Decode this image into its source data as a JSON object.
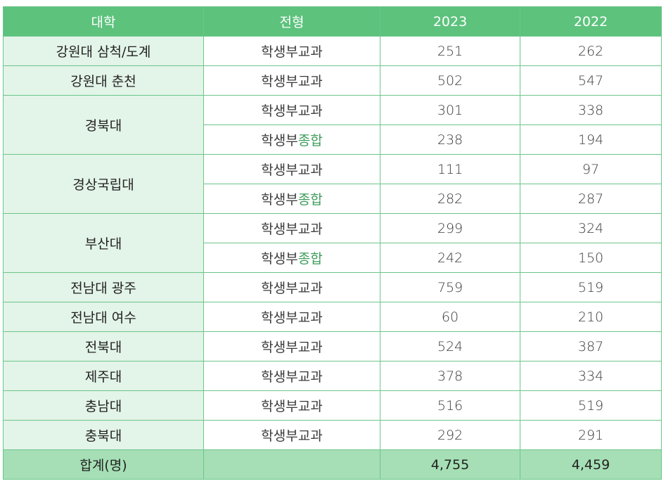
{
  "header": {
    "col_univ": "대학",
    "col_type": "전형",
    "col_2023": "2023",
    "col_2022": "2022"
  },
  "rows": [
    {
      "univ": "강원대 삼척/도계",
      "entries": [
        {
          "type_prefix": "학생부",
          "type_suffix": "교과",
          "v2023": "251",
          "v2022": "262"
        }
      ]
    },
    {
      "univ": "강원대 춘천",
      "entries": [
        {
          "type_prefix": "학생부",
          "type_suffix": "교과",
          "v2023": "502",
          "v2022": "547"
        }
      ]
    },
    {
      "univ": "경북대",
      "entries": [
        {
          "type_prefix": "학생부",
          "type_suffix": "교과",
          "v2023": "301",
          "v2022": "338"
        },
        {
          "type_prefix": "학생부",
          "type_suffix": "종합",
          "v2023": "238",
          "v2022": "194"
        }
      ]
    },
    {
      "univ": "경상국립대",
      "entries": [
        {
          "type_prefix": "학생부",
          "type_suffix": "교과",
          "v2023": "111",
          "v2022": "97"
        },
        {
          "type_prefix": "학생부",
          "type_suffix": "종합",
          "v2023": "282",
          "v2022": "287"
        }
      ]
    },
    {
      "univ": "부산대",
      "entries": [
        {
          "type_prefix": "학생부",
          "type_suffix": "교과",
          "v2023": "299",
          "v2022": "324"
        },
        {
          "type_prefix": "학생부",
          "type_suffix": "종합",
          "v2023": "242",
          "v2022": "150"
        }
      ]
    },
    {
      "univ": "전남대 광주",
      "entries": [
        {
          "type_prefix": "학생부",
          "type_suffix": "교과",
          "v2023": "759",
          "v2022": "519"
        }
      ]
    },
    {
      "univ": "전남대 여수",
      "entries": [
        {
          "type_prefix": "학생부",
          "type_suffix": "교과",
          "v2023": "60",
          "v2022": "210"
        }
      ]
    },
    {
      "univ": "전북대",
      "entries": [
        {
          "type_prefix": "학생부",
          "type_suffix": "교과",
          "v2023": "524",
          "v2022": "387"
        }
      ]
    },
    {
      "univ": "제주대",
      "entries": [
        {
          "type_prefix": "학생부",
          "type_suffix": "교과",
          "v2023": "378",
          "v2022": "334"
        }
      ]
    },
    {
      "univ": "충남대",
      "entries": [
        {
          "type_prefix": "학생부",
          "type_suffix": "교과",
          "v2023": "516",
          "v2022": "519"
        }
      ]
    },
    {
      "univ": "충북대",
      "entries": [
        {
          "type_prefix": "학생부",
          "type_suffix": "교과",
          "v2023": "292",
          "v2022": "291"
        }
      ]
    }
  ],
  "footer": {
    "label": "합계(명)",
    "type": "",
    "total_2023": "4,755",
    "total_2022": "4,459"
  },
  "colors": {
    "header_bg": "#5cc27c",
    "univ_bg": "#e3f4e8",
    "footer_bg": "#a6dfb5",
    "border": "#6cc68a",
    "accent_text": "#3d9c5b"
  }
}
